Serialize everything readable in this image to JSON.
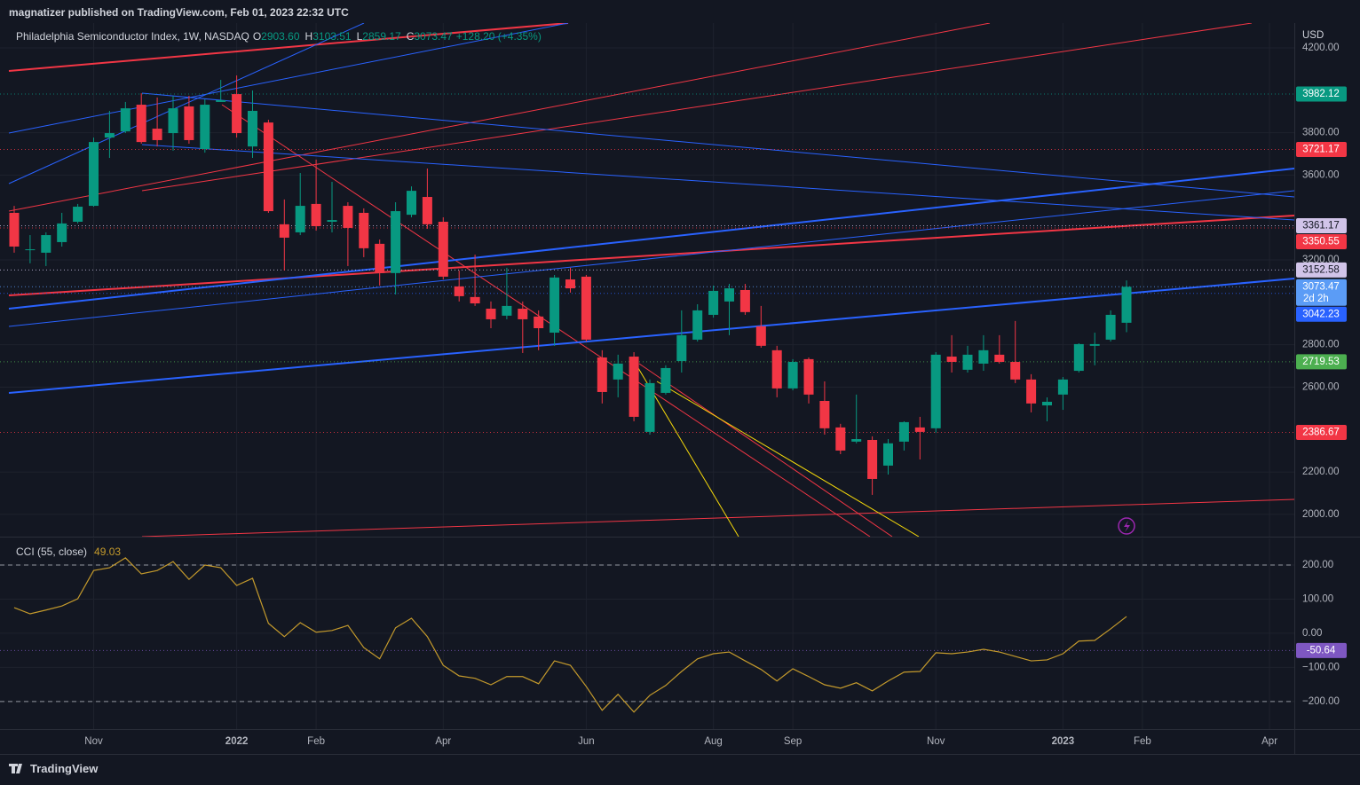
{
  "header": {
    "published": "magnatizer published on TradingView.com, Feb 01, 2023 22:32 UTC"
  },
  "footer": {
    "brand": "TradingView"
  },
  "chart_data": [
    {
      "type": "candlestick",
      "title": "Philadelphia Semiconductor Index, 1W, NASDAQ",
      "legend": [
        {
          "key": "O",
          "value": "2903.60"
        },
        {
          "key": "H",
          "value": "3103.51"
        },
        {
          "key": "L",
          "value": "2859.17"
        },
        {
          "key": "C",
          "value": "3073.47"
        }
      ],
      "change": "+128.20 (+4.35%)",
      "currency": "USD",
      "up_color": "#089981",
      "down_color": "#f23645",
      "grid": true,
      "open": [
        3422,
        3246,
        3234,
        3284,
        3380,
        3455,
        3777,
        3806,
        3932,
        3819,
        3798,
        3924,
        3723,
        3945,
        3982,
        3735,
        3848,
        3368,
        3330,
        3464,
        3380,
        3455,
        3422,
        3276,
        3138,
        3413,
        3497,
        3380,
        3075,
        3025,
        2970,
        2937,
        2970,
        2933,
        2857,
        3108,
        3121,
        2740,
        2636,
        2744,
        2389,
        2573,
        2723,
        2824,
        2941,
        3004,
        3058,
        2887,
        2774,
        2594,
        2732,
        2535,
        2410,
        2343,
        2351,
        2230,
        2343,
        2410,
        2406,
        2744,
        2682,
        2711,
        2753,
        2719,
        2636,
        2514,
        2565,
        2677,
        2795,
        2824,
        2903.6
      ],
      "high": [
        3455,
        3317,
        3330,
        3422,
        3464,
        3777,
        3903,
        3945,
        3986,
        3966,
        3974,
        3974,
        3957,
        4049,
        4070,
        3999,
        3861,
        3485,
        3610,
        3673,
        3568,
        3472,
        3443,
        3296,
        3472,
        3547,
        3631,
        3401,
        3150,
        3225,
        3004,
        3163,
        3004,
        2962,
        3129,
        3163,
        3129,
        2774,
        2753,
        2765,
        2636,
        2703,
        2962,
        2991,
        3079,
        3087,
        3087,
        2983,
        2795,
        2732,
        2740,
        2627,
        2427,
        2565,
        2368,
        2355,
        2439,
        2460,
        2765,
        2845,
        2795,
        2845,
        2845,
        2912,
        2661,
        2552,
        2648,
        2807,
        2857,
        2962,
        3103.51
      ],
      "low": [
        3234,
        3184,
        3171,
        3263,
        3372,
        3451,
        3681,
        3798,
        3748,
        3735,
        3715,
        3748,
        3706,
        3945,
        3777,
        3681,
        3422,
        3150,
        3317,
        3338,
        3330,
        3171,
        3213,
        3079,
        3037,
        3401,
        3347,
        3108,
        3004,
        2983,
        2878,
        2920,
        2761,
        2774,
        2795,
        3046,
        2815,
        2523,
        2552,
        2439,
        2376,
        2565,
        2669,
        2815,
        2928,
        2845,
        2941,
        2786,
        2552,
        2585,
        2523,
        2376,
        2284,
        2335,
        2092,
        2188,
        2301,
        2259,
        2385,
        2669,
        2669,
        2677,
        2711,
        2619,
        2481,
        2439,
        2493,
        2669,
        2703,
        2815,
        2859.17
      ],
      "close": [
        3263,
        3250,
        3317,
        3372,
        3451,
        3756,
        3798,
        3915,
        3756,
        3765,
        3915,
        3765,
        3932,
        3953,
        3798,
        3903,
        3430,
        3305,
        3455,
        3359,
        3388,
        3351,
        3255,
        3138,
        3430,
        3526,
        3368,
        3121,
        3029,
        2995,
        2920,
        2983,
        2920,
        2878,
        3117,
        3066,
        2824,
        2577,
        2711,
        2460,
        2619,
        2690,
        2845,
        2962,
        3054,
        3066,
        2954,
        2795,
        2594,
        2719,
        2565,
        2406,
        2301,
        2355,
        2167,
        2335,
        2435,
        2389,
        2753,
        2719,
        2753,
        2774,
        2719,
        2636,
        2523,
        2531,
        2636,
        2803,
        2803,
        2941,
        3073.47
      ],
      "xticks": [
        {
          "value": 5,
          "label": "Nov"
        },
        {
          "value": 14,
          "label": "2022"
        },
        {
          "value": 19,
          "label": "Feb"
        },
        {
          "value": 27,
          "label": "Apr"
        },
        {
          "value": 36,
          "label": "Jun"
        },
        {
          "value": 44,
          "label": "Aug"
        },
        {
          "value": 49,
          "label": "Sep"
        },
        {
          "value": 58,
          "label": "Nov"
        },
        {
          "value": 66,
          "label": "2023"
        },
        {
          "value": 71,
          "label": "Feb"
        },
        {
          "value": 79,
          "label": "Apr"
        }
      ],
      "ylim": [
        1895,
        4317
      ],
      "yticks": [
        {
          "value": 2000,
          "label": "2000.00"
        },
        {
          "value": 2200,
          "label": "2200.00"
        },
        {
          "value": 2600,
          "label": "2600.00"
        },
        {
          "value": 2800,
          "label": "2800.00"
        },
        {
          "value": 3200,
          "label": "3200.00"
        },
        {
          "value": 3600,
          "label": "3600.00"
        },
        {
          "value": 3800,
          "label": "3800.00"
        },
        {
          "value": 4200,
          "label": "4200.00"
        }
      ],
      "levels": [
        {
          "value": 3982.12,
          "color": "#089981"
        },
        {
          "value": 3721.17,
          "color": "#f23645"
        },
        {
          "value": 3361.17,
          "color": "#d1c4e9"
        },
        {
          "value": 3350.55,
          "color": "#f23645"
        },
        {
          "value": 3152.58,
          "color": "#d1c4e9"
        },
        {
          "value": 3073.47,
          "color": "#5b9cf6",
          "countdown": "2d 2h"
        },
        {
          "value": 3042.23,
          "color": "#2962ff"
        },
        {
          "value": 2719.53,
          "color": "#4caf50"
        },
        {
          "value": 2386.67,
          "color": "#f23645"
        }
      ]
    },
    {
      "type": "line",
      "title": "CCI (55, close)",
      "color": "#c49a2c",
      "values": [
        75,
        57,
        68,
        80,
        101,
        184,
        192,
        221,
        174,
        184,
        210,
        158,
        200,
        192,
        140,
        161,
        29,
        -10,
        31,
        3,
        8,
        23,
        -42,
        -75,
        16,
        44,
        -10,
        -94,
        -125,
        -132,
        -151,
        -127,
        -127,
        -148,
        -81,
        -94,
        -156,
        -226,
        -179,
        -231,
        -182,
        -153,
        -112,
        -75,
        -60,
        -55,
        -81,
        -106,
        -140,
        -104,
        -127,
        -151,
        -161,
        -145,
        -169,
        -140,
        -114,
        -112,
        -57,
        -60,
        -55,
        -47,
        -55,
        -68,
        -81,
        -78,
        -60,
        -23,
        -21,
        13,
        49.03
      ],
      "ylim": [
        -281,
        278
      ],
      "yticks": [
        {
          "value": 200,
          "label": "200.00"
        },
        {
          "value": 100,
          "label": "100.00"
        },
        {
          "value": 0,
          "label": "0.00"
        },
        {
          "value": -100,
          "label": "−100.00"
        },
        {
          "value": -200,
          "label": "−200.00"
        }
      ],
      "hlines": [
        200,
        -200
      ],
      "levels": [
        {
          "value": -50.64,
          "color": "#7e57c2"
        }
      ]
    }
  ]
}
